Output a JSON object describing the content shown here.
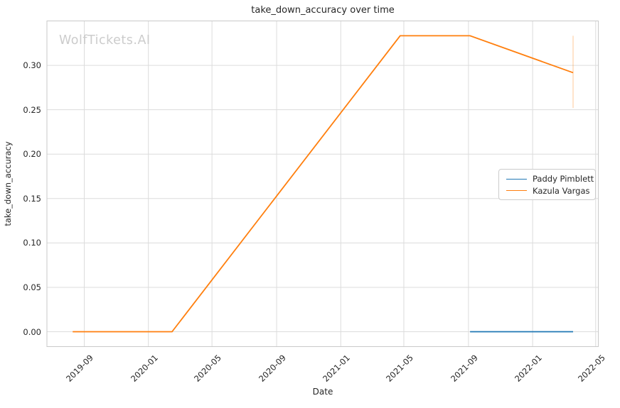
{
  "watermark": "WolfTickets.AI",
  "colors": {
    "blue": "#1f77b4",
    "orange": "#ff7f0e",
    "grid": "#dcdcdc",
    "spine": "#c9c9c9",
    "text": "#262626",
    "watermark": "#cccccc",
    "error_bar": "rgba(255,127,14,0.3)",
    "background": "#ffffff"
  },
  "chart_data": {
    "type": "line",
    "title": "take_down_accuracy over time",
    "xlabel": "Date",
    "ylabel": "take_down_accuracy",
    "grid": true,
    "legend_position": "center right",
    "xlim": [
      "2019-06-22",
      "2022-05-06"
    ],
    "ylim": [
      -0.01675,
      0.35
    ],
    "x_ticks": [
      {
        "label": "2019-09",
        "date": "2019-09-01"
      },
      {
        "label": "2020-01",
        "date": "2020-01-01"
      },
      {
        "label": "2020-05",
        "date": "2020-05-01"
      },
      {
        "label": "2020-09",
        "date": "2020-09-01"
      },
      {
        "label": "2021-01",
        "date": "2021-01-01"
      },
      {
        "label": "2021-05",
        "date": "2021-05-01"
      },
      {
        "label": "2021-09",
        "date": "2021-09-01"
      },
      {
        "label": "2022-01",
        "date": "2022-01-01"
      },
      {
        "label": "2022-05",
        "date": "2022-05-01"
      }
    ],
    "y_ticks": [
      {
        "label": "0.00",
        "value": 0.0
      },
      {
        "label": "0.05",
        "value": 0.05
      },
      {
        "label": "0.10",
        "value": 0.1
      },
      {
        "label": "0.15",
        "value": 0.15
      },
      {
        "label": "0.20",
        "value": 0.2
      },
      {
        "label": "0.25",
        "value": 0.25
      },
      {
        "label": "0.30",
        "value": 0.3
      }
    ],
    "series": [
      {
        "name": "Paddy Pimblett",
        "color": "#1f77b4",
        "points": [
          {
            "date": "2021-09-04",
            "value": 0.0
          },
          {
            "date": "2022-03-19",
            "value": 0.0
          }
        ]
      },
      {
        "name": "Kazula Vargas",
        "color": "#ff7f0e",
        "points": [
          {
            "date": "2019-08-10",
            "value": 0.0
          },
          {
            "date": "2020-02-15",
            "value": 0.0
          },
          {
            "date": "2021-04-24",
            "value": 0.3333
          },
          {
            "date": "2021-09-04",
            "value": 0.3333
          },
          {
            "date": "2022-03-19",
            "value": 0.2917
          }
        ]
      }
    ],
    "error_bars": [
      {
        "series": "Kazula Vargas",
        "date": "2022-03-19",
        "low": 0.252,
        "high": 0.3333
      }
    ]
  }
}
